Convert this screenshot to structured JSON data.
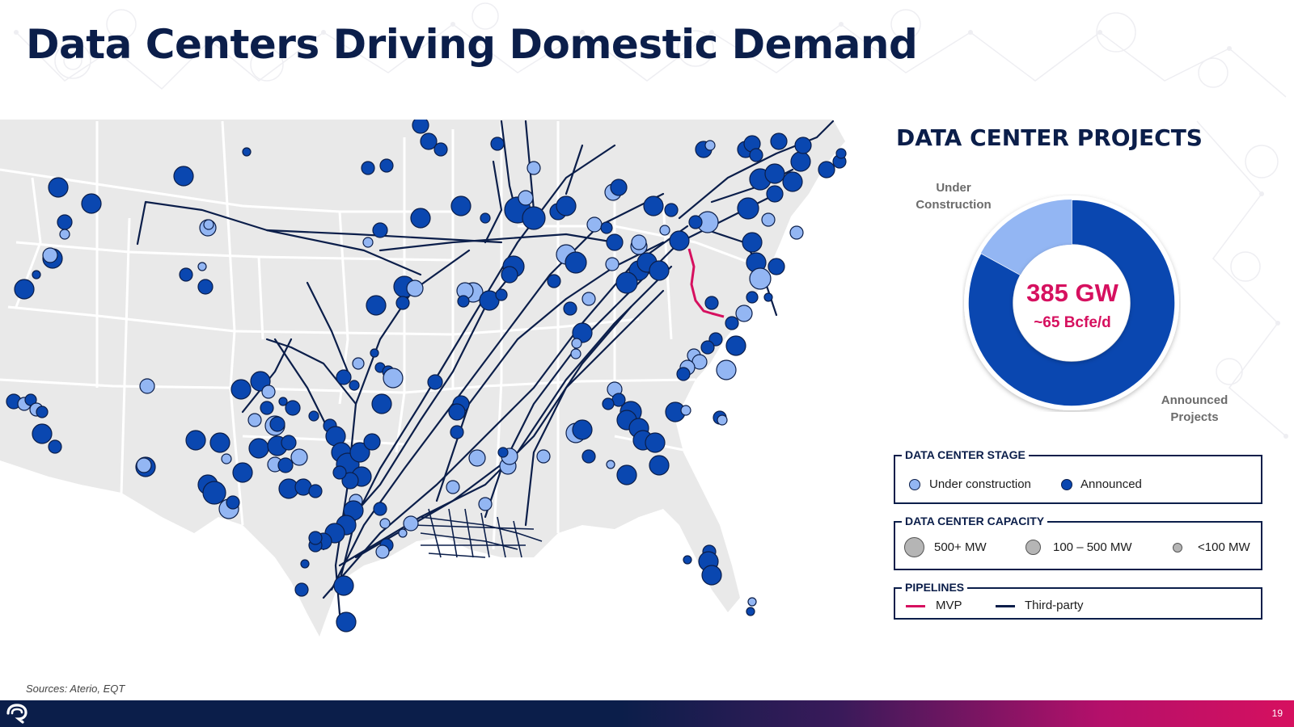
{
  "header": {
    "title": "Data Centers Driving Domestic Demand"
  },
  "panel": {
    "title": "DATA CENTER PROJECTS",
    "donut": {
      "center_value": "385 GW",
      "center_sub": "~65 Bcfe/d",
      "label_under_construction": "Under Construction",
      "label_announced": "Announced Projects",
      "under_construction_share": 0.17,
      "colors": {
        "under_construction": "#93b6f3",
        "announced": "#0a47b0"
      }
    }
  },
  "legend": {
    "stage": {
      "title": "DATA CENTER STAGE",
      "items": [
        {
          "label": "Under construction",
          "color": "#93b6f3"
        },
        {
          "label": "Announced",
          "color": "#0a47b0"
        }
      ]
    },
    "capacity": {
      "title": "DATA CENTER CAPACITY",
      "items": [
        {
          "label": "500+ MW"
        },
        {
          "label": "100 – 500 MW"
        },
        {
          "label": "<100 MW"
        }
      ],
      "color": "#b5b5b5"
    },
    "pipelines": {
      "title": "PIPELINES",
      "items": [
        {
          "label": "MVP",
          "color": "#d6105f"
        },
        {
          "label": "Third-party",
          "color": "#0b1e4a"
        }
      ]
    }
  },
  "footer": {
    "sources": "Sources: Aterio, EQT",
    "page_number": "19"
  },
  "colors": {
    "navy": "#0b1e4a",
    "accent": "#d6105f",
    "map_land": "#e9e9e9",
    "pipeline": "#0b1e4a"
  }
}
